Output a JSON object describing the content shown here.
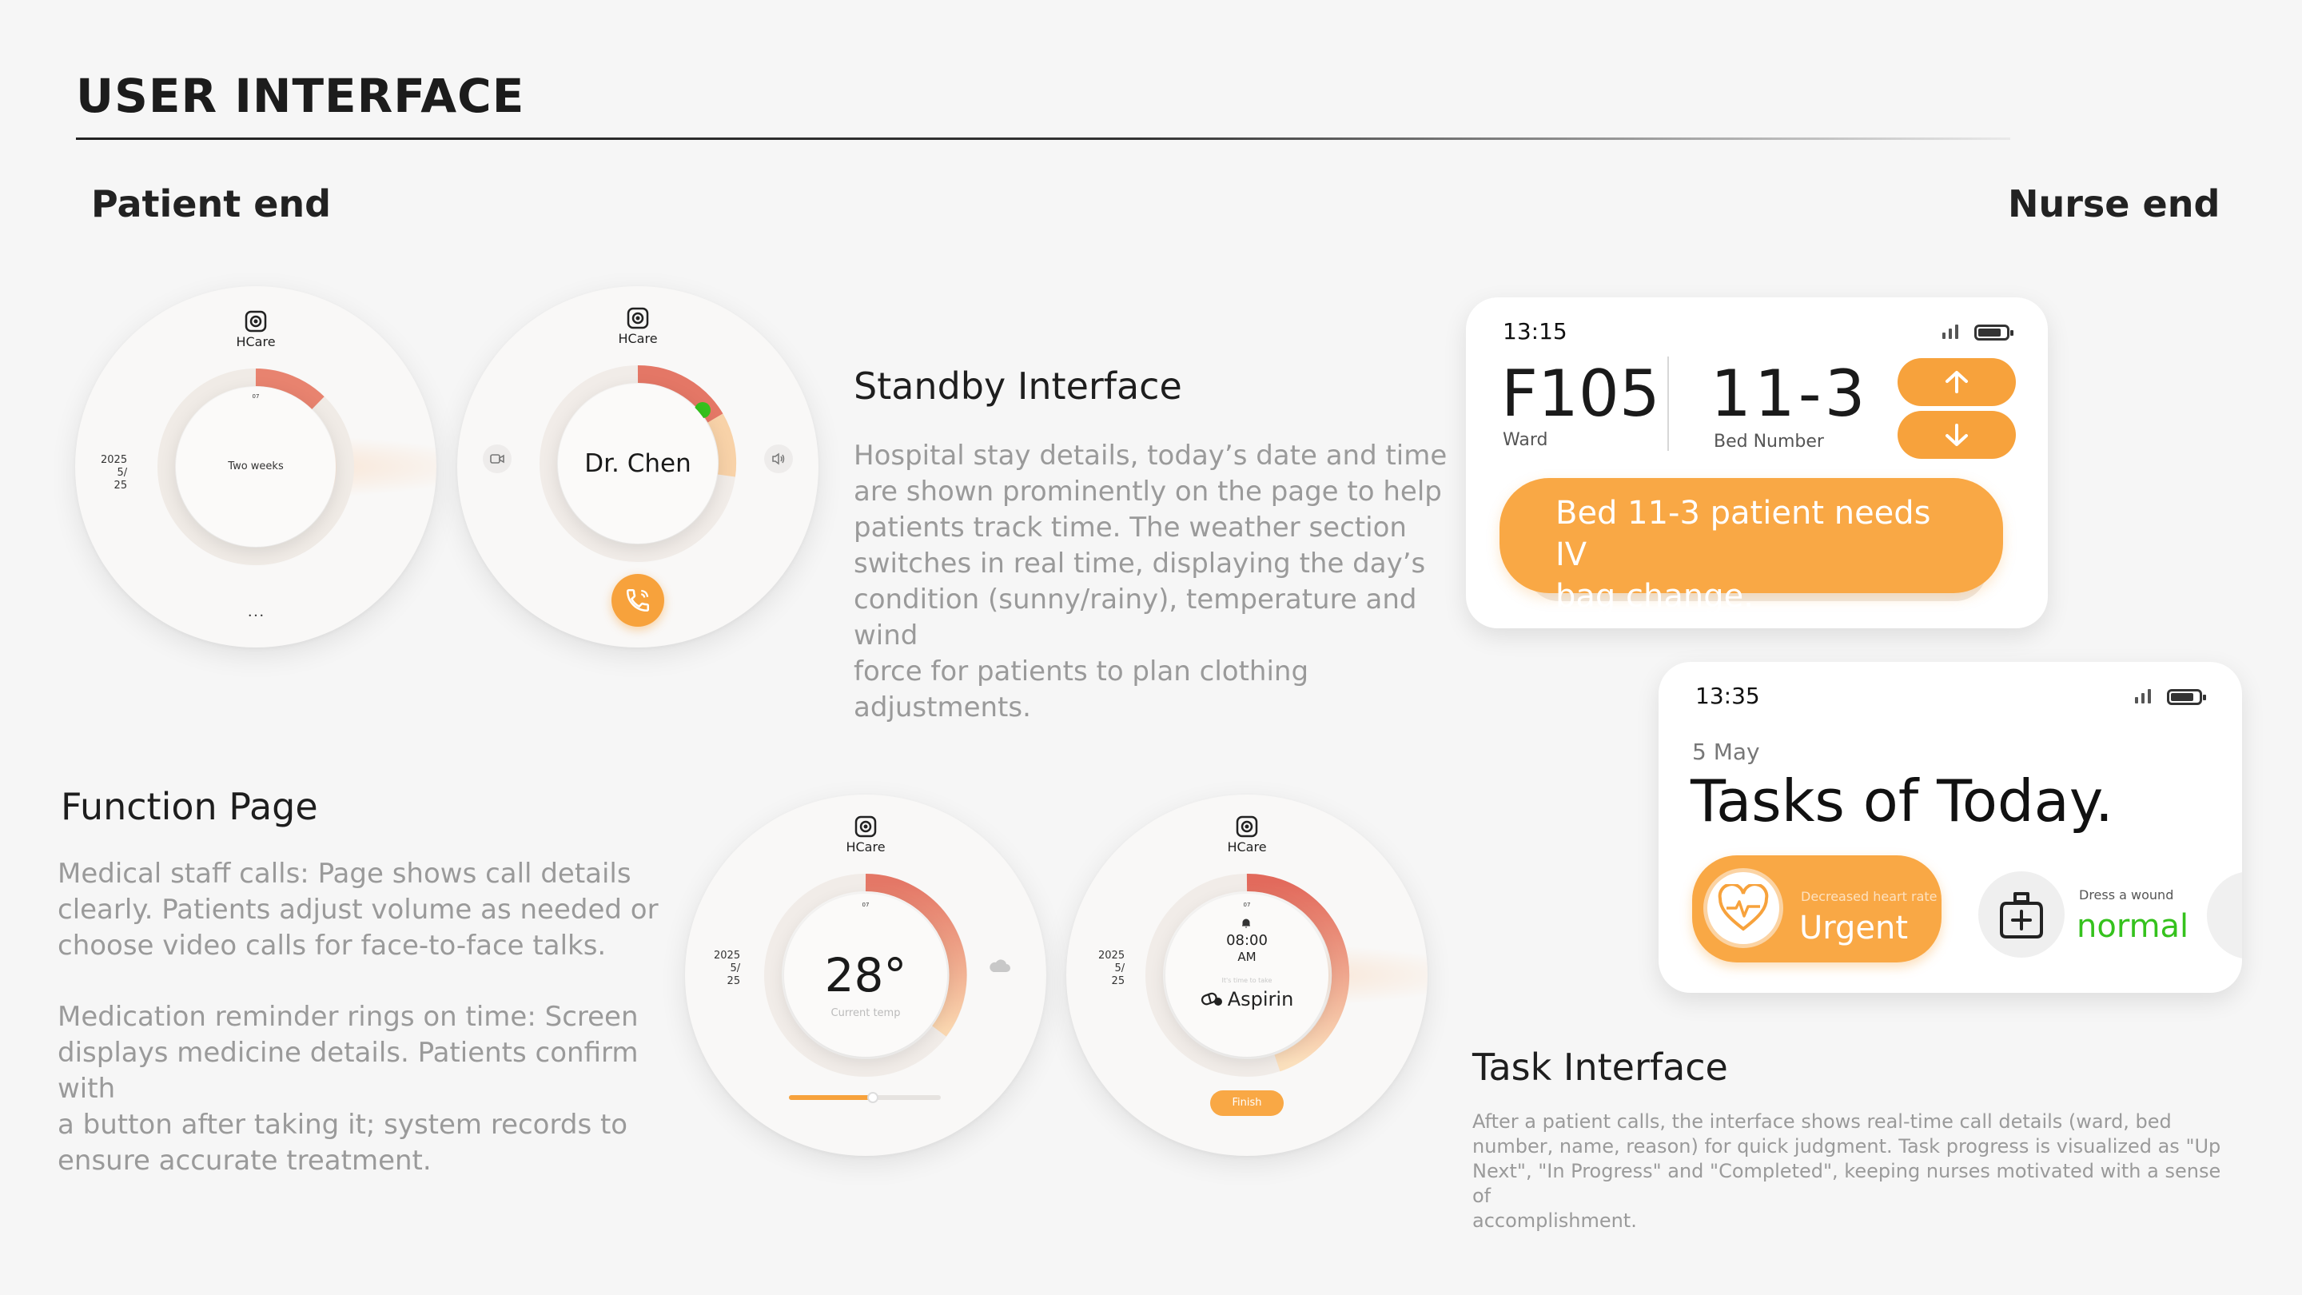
{
  "header": {
    "title": "USER INTERFACE"
  },
  "sections": {
    "patient_end": "Patient end",
    "nurse_end": "Nurse end"
  },
  "brand": {
    "name": "HCare",
    "accent": "#f7a23c",
    "ring_red": "#e26a5c",
    "green": "#35c21d"
  },
  "watch_standby": {
    "year": "2025",
    "month": "5/",
    "day": "25",
    "center_text": "Two weeks",
    "top_mark": "07",
    "bottom_mark": "• • •"
  },
  "watch_call": {
    "caller": "Dr. Chen"
  },
  "standby_section": {
    "heading": "Standby Interface",
    "lines": [
      "Hospital stay details, today’s date and time",
      "are shown prominently on the page to help",
      "patients track time. The weather section",
      "switches in real time, displaying the day’s",
      "condition (sunny/rainy), temperature and wind",
      "force for patients to plan clothing adjustments."
    ]
  },
  "function_section": {
    "heading": "Function Page",
    "para1": [
      "Medical staff calls: Page shows call details",
      "clearly. Patients adjust volume as needed or",
      "choose video calls for face-to-face talks."
    ],
    "para2": [
      "Medication reminder rings on time: Screen",
      "displays medicine details. Patients confirm with",
      "a button after taking it; system records to",
      "ensure accurate treatment."
    ]
  },
  "watch_temp": {
    "year": "2025",
    "month": "5/",
    "day": "25",
    "temperature": "28°",
    "caption": "Current temp",
    "top_mark": "07",
    "slider_level": 0.55
  },
  "watch_med": {
    "year": "2025",
    "month": "5/",
    "day": "25",
    "time": "08:00",
    "ampm": "AM",
    "caption": "It's time to take",
    "medicine": "Aspirin",
    "finish_label": "Finish",
    "top_mark": "07"
  },
  "nurse_card1": {
    "time": "13:15",
    "ward": "F105",
    "ward_label": "Ward",
    "bed": "11-3",
    "bed_label": "Bed Number",
    "alert": [
      "Bed 11-3 patient needs IV",
      "bag change."
    ]
  },
  "nurse_card2": {
    "time": "13:35",
    "date": "5 May",
    "title": "Tasks of Today.",
    "task1": {
      "desc": "Decreased heart rate",
      "status": "Urgent"
    },
    "task2": {
      "desc": "Dress a wound",
      "status": "normal"
    }
  },
  "task_section": {
    "heading": "Task Interface",
    "lines": [
      "After a patient calls, the interface shows real-time call details (ward, bed",
      "number, name, reason) for quick judgment. Task progress is visualized as \"Up",
      "Next\", \"In Progress\" and \"Completed\", keeping nurses motivated with a sense of",
      "accomplishment."
    ]
  }
}
